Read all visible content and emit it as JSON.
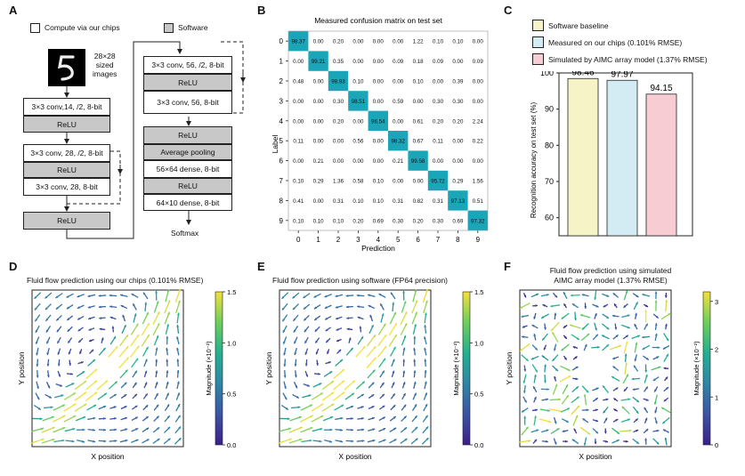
{
  "panel_letters": {
    "a": "A",
    "b": "B",
    "c": "C",
    "d": "D",
    "e": "E",
    "f": "F"
  },
  "panel_a": {
    "legend_compute": "Compute via our chips",
    "legend_software": "Software",
    "input_label": [
      "28×28",
      "sized",
      "images"
    ],
    "left_stack": [
      "3×3 conv,14, /2, 8-bit",
      "ReLU",
      "3×3 conv, 28, /2, 8-bit",
      "ReLU",
      "3×3 conv, 28, 8-bit",
      "ReLU"
    ],
    "right_stack": [
      "3×3 conv, 56, /2, 8-bit",
      "ReLU",
      "3×3 conv, 56, 8-bit",
      "ReLU",
      "Average pooling",
      "56×64 dense, 8-bit",
      "ReLU",
      "64×10 dense, 8-bit"
    ],
    "output_label": "Softmax"
  },
  "chart_data": [
    {
      "type": "heatmap",
      "title": "Measured confusion matrix on test set",
      "xlabel": "Prediction",
      "ylabel": "Label",
      "x": [
        "0",
        "1",
        "2",
        "3",
        "4",
        "5",
        "6",
        "7",
        "8",
        "9"
      ],
      "y": [
        "0",
        "1",
        "2",
        "3",
        "4",
        "5",
        "6",
        "7",
        "8",
        "9"
      ],
      "values": [
        [
          "98.37",
          "0.00",
          "0.20",
          "0.00",
          "0.00",
          "0.00",
          "1.22",
          "0.10",
          "0.10",
          "0.00"
        ],
        [
          "0.00",
          "99.21",
          "0.35",
          "0.00",
          "0.00",
          "0.09",
          "0.18",
          "0.09",
          "0.00",
          "0.09"
        ],
        [
          "0.48",
          "0.00",
          "98.93",
          "0.10",
          "0.00",
          "0.00",
          "0.10",
          "0.00",
          "0.39",
          "0.00"
        ],
        [
          "0.00",
          "0.00",
          "0.30",
          "98.51",
          "0.00",
          "0.59",
          "0.00",
          "0.30",
          "0.30",
          "0.00"
        ],
        [
          "0.00",
          "0.00",
          "0.20",
          "0.00",
          "96.54",
          "0.00",
          "0.61",
          "0.20",
          "0.20",
          "2.24"
        ],
        [
          "0.11",
          "0.00",
          "0.00",
          "0.56",
          "0.00",
          "98.32",
          "0.67",
          "0.11",
          "0.00",
          "0.22"
        ],
        [
          "0.00",
          "0.21",
          "0.00",
          "0.00",
          "0.00",
          "0.21",
          "99.58",
          "0.00",
          "0.00",
          "0.00"
        ],
        [
          "0.10",
          "0.29",
          "1.36",
          "0.58",
          "0.10",
          "0.00",
          "0.00",
          "95.72",
          "0.29",
          "1.56"
        ],
        [
          "0.41",
          "0.00",
          "0.31",
          "0.10",
          "0.10",
          "0.31",
          "0.82",
          "0.31",
          "97.13",
          "0.51"
        ],
        [
          "0.10",
          "0.10",
          "0.10",
          "0.20",
          "0.69",
          "0.30",
          "0.20",
          "0.30",
          "0.69",
          "97.32"
        ]
      ]
    },
    {
      "type": "bar",
      "ylabel": "Recognition accuracy on test set (%)",
      "ylim": [
        55,
        100
      ],
      "yticks": [
        "60",
        "70",
        "80",
        "90",
        "100"
      ],
      "categories": [
        "Software baseline",
        "Measured on our chips (0.101% RMSE)",
        "Simulated by AIMC array model (1.37% RMSE)"
      ],
      "values": [
        98.46,
        97.97,
        94.15
      ],
      "value_labels": [
        "98.46",
        "97.97",
        "94.15"
      ],
      "colors": [
        "#f6f4c6",
        "#d3ebf2",
        "#f8ccd3"
      ]
    },
    {
      "type": "quiver",
      "title": "Fluid flow prediction using our chips (0.101% RMSE)",
      "xlabel": "X position",
      "ylabel": "Y position",
      "colorbar_label": "Magnitude (×10⁻²)",
      "colorbar_ticks": [
        "0.0",
        "0.5",
        "1.0",
        "1.5"
      ],
      "colorbar_range": [
        0,
        1.5
      ]
    },
    {
      "type": "quiver",
      "title": "Fluid flow prediction using software (FP64 precision)",
      "xlabel": "X position",
      "ylabel": "Y position",
      "colorbar_label": "Magnitude (×10⁻²)",
      "colorbar_ticks": [
        "0.0",
        "0.5",
        "1.0",
        "1.5"
      ],
      "colorbar_range": [
        0,
        1.5
      ]
    },
    {
      "type": "quiver",
      "title_lines": [
        "Fluid flow prediction using simulated",
        "AIMC array model (1.37% RMSE)"
      ],
      "xlabel": "X position",
      "ylabel": "Y position",
      "colorbar_label": "Magnitude (×10⁻²)",
      "colorbar_ticks": [
        "0",
        "1",
        "2",
        "3"
      ],
      "colorbar_range": [
        0,
        3.2
      ]
    }
  ],
  "colors": {
    "heat_high": "#1aa5b8",
    "gray_box": "#c8c8c8",
    "cmap": [
      "#3b1f8a",
      "#3b54a4",
      "#2e86a7",
      "#22b08f",
      "#6ccf5b",
      "#f4e03a"
    ]
  }
}
